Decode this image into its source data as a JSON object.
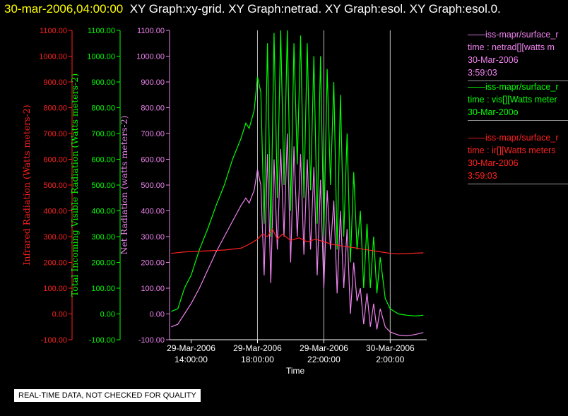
{
  "header": {
    "timestamp": "30-mar-2006,04:00:00",
    "graphs": "XY Graph:xy-grid.  XY Graph:netrad.  XY Graph:esol.  XY Graph:esol.0."
  },
  "notice": "REAL-TIME DATA, NOT CHECKED FOR QUALITY",
  "legend": [
    {
      "line1": "——iss-mapr/surface_r",
      "line2": "time : netrad[][watts m",
      "line3": "30-Mar-2006",
      "line4": "3:59:03",
      "color": "#ee82ee"
    },
    {
      "line1": "——iss-mapr/surface_r",
      "line2": "time : vis[][Watts meter",
      "line3": "30-Mar-200o",
      "line4": "",
      "color": "#00ff00"
    },
    {
      "line1": "——iss-mapr/surface_r",
      "line2": "time : ir[][Watts meters",
      "line3": "30-Mar-2006",
      "line4": "3:59:03",
      "color": "#ff2020"
    }
  ],
  "chart_data": {
    "type": "line",
    "xlabel": "Time",
    "x_ticks": [
      {
        "date": "29-Mar-2006",
        "time": "14:00:00",
        "hours": 14
      },
      {
        "date": "29-Mar-2006",
        "time": "18:00:00",
        "hours": 18
      },
      {
        "date": "29-Mar-2006",
        "time": "22:00:00",
        "hours": 22
      },
      {
        "date": "30-Mar-2006",
        "time": "2:00:00",
        "hours": 26
      }
    ],
    "xlim": [
      12.7,
      28.2
    ],
    "grid_hours": [
      18,
      22,
      26
    ],
    "axes": [
      {
        "label": "Infrared Radiation (Watts meters-2)",
        "color": "#ff2020",
        "ylim": [
          -100,
          1100
        ]
      },
      {
        "label": "Total Incoming Visible Radiation (Watts meters-2)",
        "color": "#00ff00",
        "ylim": [
          -100,
          1100
        ]
      },
      {
        "label": "Net Radiation (watts meters-2)",
        "color": "#ee82ee",
        "ylim": [
          -100,
          1100
        ]
      }
    ],
    "y_ticks": [
      "-100.00",
      "0.00",
      "100.00",
      "200.00",
      "300.00",
      "400.00",
      "500.00",
      "600.00",
      "700.00",
      "800.00",
      "900.00",
      "1000.00",
      "1100.00"
    ],
    "series": [
      {
        "name": "vis",
        "color": "#00ff00",
        "points": [
          [
            12.8,
            10
          ],
          [
            13.2,
            20
          ],
          [
            13.6,
            100
          ],
          [
            14,
            150
          ],
          [
            14.5,
            250
          ],
          [
            15,
            330
          ],
          [
            15.5,
            420
          ],
          [
            16,
            500
          ],
          [
            16.5,
            600
          ],
          [
            17,
            680
          ],
          [
            17.3,
            740
          ],
          [
            17.5,
            720
          ],
          [
            17.8,
            790
          ],
          [
            18,
            920
          ],
          [
            18.2,
            860
          ],
          [
            18.4,
            350
          ],
          [
            18.6,
            1050
          ],
          [
            18.8,
            300
          ],
          [
            19,
            1090
          ],
          [
            19.2,
            450
          ],
          [
            19.4,
            1100
          ],
          [
            19.6,
            500
          ],
          [
            19.8,
            1100
          ],
          [
            20,
            400
          ],
          [
            20.2,
            1050
          ],
          [
            20.4,
            580
          ],
          [
            20.6,
            1080
          ],
          [
            20.8,
            450
          ],
          [
            21,
            1050
          ],
          [
            21.2,
            480
          ],
          [
            21.4,
            1000
          ],
          [
            21.6,
            350
          ],
          [
            21.8,
            1000
          ],
          [
            22,
            300
          ],
          [
            22.2,
            950
          ],
          [
            22.4,
            500
          ],
          [
            22.6,
            900
          ],
          [
            22.8,
            250
          ],
          [
            23,
            850
          ],
          [
            23.2,
            300
          ],
          [
            23.4,
            700
          ],
          [
            23.6,
            200
          ],
          [
            23.8,
            550
          ],
          [
            24,
            250
          ],
          [
            24.2,
            400
          ],
          [
            24.4,
            100
          ],
          [
            24.6,
            350
          ],
          [
            24.8,
            100
          ],
          [
            25,
            300
          ],
          [
            25.2,
            80
          ],
          [
            25.4,
            220
          ],
          [
            25.7,
            60
          ],
          [
            26,
            20
          ],
          [
            26.5,
            0
          ],
          [
            27,
            -5
          ],
          [
            27.5,
            -8
          ],
          [
            28,
            -5
          ]
        ]
      },
      {
        "name": "netrad",
        "color": "#ee82ee",
        "points": [
          [
            12.8,
            -50
          ],
          [
            13.2,
            -40
          ],
          [
            13.6,
            0
          ],
          [
            14,
            40
          ],
          [
            14.5,
            100
          ],
          [
            15,
            170
          ],
          [
            15.5,
            240
          ],
          [
            16,
            300
          ],
          [
            16.5,
            360
          ],
          [
            17,
            420
          ],
          [
            17.3,
            450
          ],
          [
            17.5,
            430
          ],
          [
            17.8,
            480
          ],
          [
            18,
            560
          ],
          [
            18.2,
            500
          ],
          [
            18.4,
            150
          ],
          [
            18.6,
            620
          ],
          [
            18.8,
            120
          ],
          [
            19,
            600
          ],
          [
            19.2,
            250
          ],
          [
            19.4,
            640
          ],
          [
            19.6,
            300
          ],
          [
            19.8,
            700
          ],
          [
            20,
            200
          ],
          [
            20.2,
            650
          ],
          [
            20.4,
            300
          ],
          [
            20.6,
            620
          ],
          [
            20.8,
            230
          ],
          [
            21,
            600
          ],
          [
            21.2,
            250
          ],
          [
            21.4,
            570
          ],
          [
            21.6,
            150
          ],
          [
            21.8,
            520
          ],
          [
            22,
            100
          ],
          [
            22.2,
            480
          ],
          [
            22.4,
            250
          ],
          [
            22.6,
            440
          ],
          [
            22.8,
            80
          ],
          [
            23,
            400
          ],
          [
            23.2,
            100
          ],
          [
            23.4,
            330
          ],
          [
            23.6,
            0
          ],
          [
            23.8,
            200
          ],
          [
            24,
            50
          ],
          [
            24.2,
            100
          ],
          [
            24.4,
            -40
          ],
          [
            24.6,
            80
          ],
          [
            24.8,
            -50
          ],
          [
            25,
            40
          ],
          [
            25.2,
            -60
          ],
          [
            25.4,
            20
          ],
          [
            25.7,
            -50
          ],
          [
            26,
            -70
          ],
          [
            26.5,
            -82
          ],
          [
            27,
            -85
          ],
          [
            27.5,
            -80
          ],
          [
            28,
            -72
          ]
        ]
      },
      {
        "name": "ir",
        "color": "#ff2020",
        "points": [
          [
            12.8,
            235
          ],
          [
            13.5,
            240
          ],
          [
            14,
            242
          ],
          [
            15,
            245
          ],
          [
            16,
            248
          ],
          [
            17,
            255
          ],
          [
            17.5,
            270
          ],
          [
            18,
            290
          ],
          [
            18.3,
            310
          ],
          [
            18.6,
            300
          ],
          [
            18.9,
            330
          ],
          [
            19.2,
            290
          ],
          [
            19.5,
            310
          ],
          [
            20,
            285
          ],
          [
            20.5,
            295
          ],
          [
            21,
            280
          ],
          [
            21.5,
            290
          ],
          [
            22,
            280
          ],
          [
            22.5,
            270
          ],
          [
            23,
            265
          ],
          [
            23.5,
            260
          ],
          [
            24,
            255
          ],
          [
            24.5,
            250
          ],
          [
            25,
            245
          ],
          [
            25.5,
            240
          ],
          [
            26,
            235
          ],
          [
            26.5,
            233
          ],
          [
            27,
            234
          ],
          [
            27.5,
            236
          ],
          [
            28,
            237
          ]
        ]
      }
    ]
  }
}
